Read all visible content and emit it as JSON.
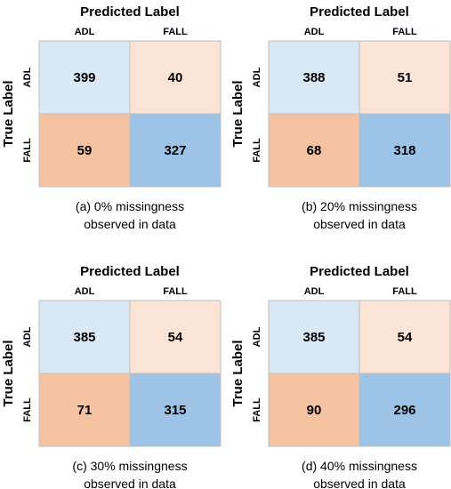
{
  "colors": {
    "true_positive_class_0": "#dae8f6",
    "false_positive": "#fbe3d6",
    "false_negative": "#f5c3a2",
    "true_positive_class_1": "#9dc3e6",
    "border": "#bfbfbf"
  },
  "chart_data": [
    {
      "type": "heatmap",
      "title": "Predicted Label",
      "ylabel": "True Label",
      "x_categories": [
        "ADL",
        "FALL"
      ],
      "y_categories": [
        "ADL",
        "FALL"
      ],
      "values": [
        [
          399,
          40
        ],
        [
          59,
          327
        ]
      ],
      "caption_line1": "(a)  0% missingness",
      "caption_line2": "observed in data"
    },
    {
      "type": "heatmap",
      "title": "Predicted Label",
      "ylabel": "True Label",
      "x_categories": [
        "ADL",
        "FALL"
      ],
      "y_categories": [
        "ADL",
        "FALL"
      ],
      "values": [
        [
          388,
          51
        ],
        [
          68,
          318
        ]
      ],
      "caption_line1": "(b)  20% missingness",
      "caption_line2": "observed in data"
    },
    {
      "type": "heatmap",
      "title": "Predicted Label",
      "ylabel": "True Label",
      "x_categories": [
        "ADL",
        "FALL"
      ],
      "y_categories": [
        "ADL",
        "FALL"
      ],
      "values": [
        [
          385,
          54
        ],
        [
          71,
          315
        ]
      ],
      "caption_line1": "(c)  30% missingness",
      "caption_line2": "observed in data"
    },
    {
      "type": "heatmap",
      "title": "Predicted Label",
      "ylabel": "True Label",
      "x_categories": [
        "ADL",
        "FALL"
      ],
      "y_categories": [
        "ADL",
        "FALL"
      ],
      "values": [
        [
          385,
          54
        ],
        [
          90,
          296
        ]
      ],
      "caption_line1": "(d)  40% missingness",
      "caption_line2": "observed in data"
    }
  ]
}
